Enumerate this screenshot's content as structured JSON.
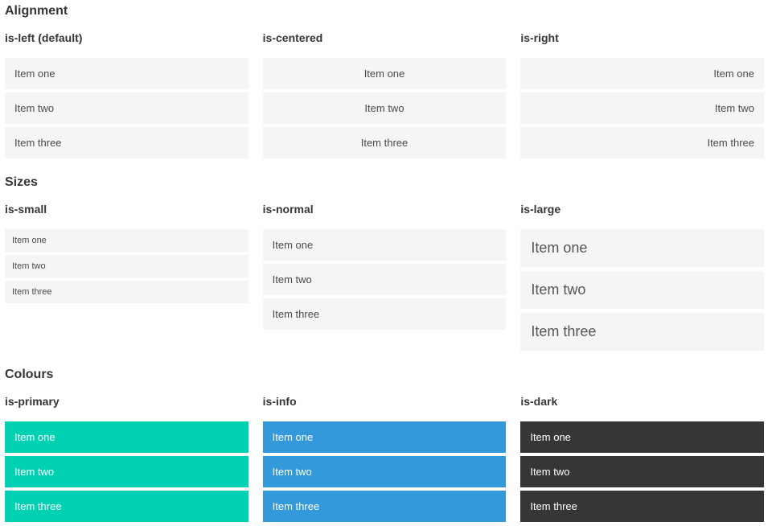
{
  "sections": [
    {
      "title": "Alignment",
      "columns": [
        {
          "label": "is-left (default)",
          "items": [
            "Item one",
            "Item two",
            "Item three"
          ]
        },
        {
          "label": "is-centered",
          "items": [
            "Item one",
            "Item two",
            "Item three"
          ]
        },
        {
          "label": "is-right",
          "items": [
            "Item one",
            "Item two",
            "Item three"
          ]
        }
      ]
    },
    {
      "title": "Sizes",
      "columns": [
        {
          "label": "is-small",
          "items": [
            "Item one",
            "Item two",
            "Item three"
          ]
        },
        {
          "label": "is-normal",
          "items": [
            "Item one",
            "Item two",
            "Item three"
          ]
        },
        {
          "label": "is-large",
          "items": [
            "Item one",
            "Item two",
            "Item three"
          ]
        }
      ]
    },
    {
      "title": "Colours",
      "columns": [
        {
          "label": "is-primary",
          "items": [
            "Item one",
            "Item two",
            "Item three"
          ]
        },
        {
          "label": "is-info",
          "items": [
            "Item one",
            "Item two",
            "Item three"
          ]
        },
        {
          "label": "is-dark",
          "items": [
            "Item one",
            "Item two",
            "Item three"
          ]
        }
      ]
    }
  ],
  "colors": {
    "primary": "#00d1b2",
    "info": "#3499db",
    "dark": "#363636",
    "item_background": "#f5f5f5"
  }
}
